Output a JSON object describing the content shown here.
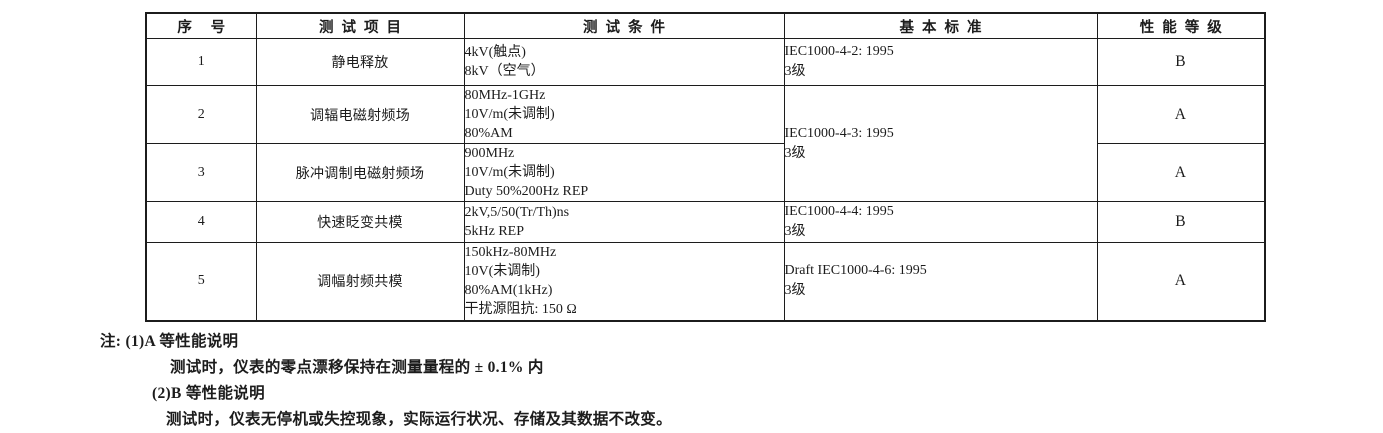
{
  "table": {
    "headers": {
      "no": "序号",
      "item": "测试项目",
      "condition": "测试条件",
      "standard": "基本标准",
      "grade": "性能等级"
    },
    "rows": [
      {
        "no": "1",
        "item": "静电释放",
        "conditions": [
          "4kV(触点)",
          "8kV（空气）"
        ],
        "standard": [
          "IEC1000-4-2: 1995",
          "3级"
        ],
        "grade": "B"
      },
      {
        "no": "2",
        "item": "调辐电磁射频场",
        "conditions": [
          "80MHz-1GHz",
          "10V/m(未调制)",
          "80%AM"
        ],
        "standard": [
          "IEC1000-4-3: 1995",
          "3级"
        ],
        "grade": "A"
      },
      {
        "no": "3",
        "item": "脉冲调制电磁射频场",
        "conditions": [
          "900MHz",
          "10V/m(未调制)",
          "Duty 50%200Hz REP"
        ],
        "grade": "A"
      },
      {
        "no": "4",
        "item": "快速眨变共模",
        "conditions": [
          "2kV,5/50(Tr/Th)ns",
          "5kHz REP"
        ],
        "standard": [
          "IEC1000-4-4: 1995",
          "3级"
        ],
        "grade": "B"
      },
      {
        "no": "5",
        "item": "调幅射频共模",
        "conditions": [
          "150kHz-80MHz",
          "10V(未调制)",
          "80%AM(1kHz)",
          "干扰源阻抗: 150 Ω"
        ],
        "standard": [
          "Draft IEC1000-4-6: 1995",
          "3级"
        ],
        "grade": "A"
      }
    ]
  },
  "notes": {
    "label": "注:",
    "line1": "(1)A 等性能说明",
    "line2": "测试时，仪表的零点漂移保持在测量量程的 ± 0.1% 内",
    "line3": "(2)B 等性能说明",
    "line4": "测试时，仪表无停机或失控现象，实际运行状况、存储及其数据不改变。"
  }
}
